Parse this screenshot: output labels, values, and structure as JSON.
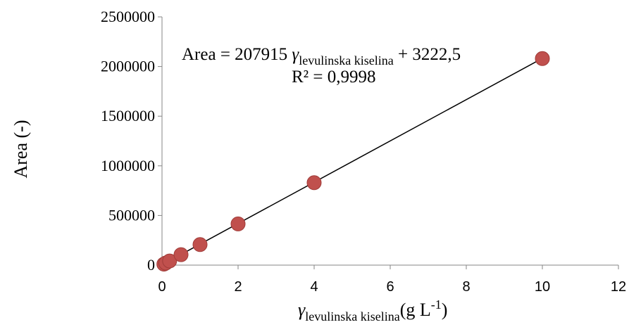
{
  "chart_data": {
    "type": "scatter",
    "x_symbol": "γ",
    "x_subscript": "levulinska kiselina",
    "x_unit_prefix": "(g L",
    "x_unit_exponent": "-1",
    "x_unit_suffix": ")",
    "ylabel": "Area (-)",
    "xlim": [
      0,
      12
    ],
    "ylim": [
      0,
      2500000
    ],
    "x_ticks": [
      0,
      2,
      4,
      6,
      8,
      10,
      12
    ],
    "y_ticks": [
      0,
      500000,
      1000000,
      1500000,
      2000000,
      2500000
    ],
    "grid": false,
    "legend": "none",
    "marker_color": "#c0504d",
    "line_color": "#000000",
    "series": [
      {
        "x": [
          0.05,
          0.1,
          0.2,
          0.5,
          1,
          2,
          4,
          10
        ],
        "y": [
          10000,
          21000,
          42000,
          105000,
          207000,
          415000,
          830000,
          2080000
        ]
      }
    ],
    "trendline": {
      "slope": 207915,
      "intercept": 3222.5,
      "x_range": [
        0.05,
        10
      ]
    },
    "equation": {
      "prefix": "Area = 207915 ",
      "symbol": "γ",
      "subscript": "levulinska kiselina",
      "suffix": " + 3222,5",
      "r_squared": "R² = 0,9998"
    }
  }
}
